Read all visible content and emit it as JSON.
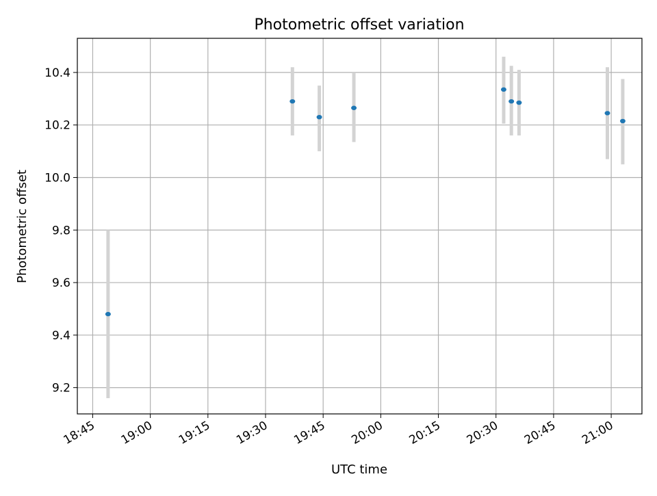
{
  "chart_data": {
    "type": "scatter",
    "title": "Photometric offset variation",
    "xlabel": "UTC time",
    "ylabel": "Photometric offset",
    "x_is_time": true,
    "xlim": [
      "18:41",
      "21:08"
    ],
    "ylim": [
      9.1,
      10.53
    ],
    "x_ticks": [
      "18:45",
      "19:00",
      "19:15",
      "19:30",
      "19:45",
      "20:00",
      "20:15",
      "20:30",
      "20:45",
      "21:00"
    ],
    "y_ticks": [
      "9.2",
      "9.4",
      "9.6",
      "9.8",
      "10.0",
      "10.2",
      "10.4"
    ],
    "grid": true,
    "colors": {
      "point": "#1f77b4",
      "errorbar": "#d3d3d3",
      "grid": "#b0b0b0"
    },
    "points": [
      {
        "time": "18:49",
        "y": 9.48,
        "y_low": 9.16,
        "y_high": 9.8
      },
      {
        "time": "19:37",
        "y": 10.29,
        "y_low": 10.16,
        "y_high": 10.42
      },
      {
        "time": "19:44",
        "y": 10.23,
        "y_low": 10.1,
        "y_high": 10.35
      },
      {
        "time": "19:53",
        "y": 10.265,
        "y_low": 10.135,
        "y_high": 10.4
      },
      {
        "time": "20:32",
        "y": 10.335,
        "y_low": 10.205,
        "y_high": 10.46
      },
      {
        "time": "20:34",
        "y": 10.29,
        "y_low": 10.16,
        "y_high": 10.425
      },
      {
        "time": "20:36",
        "y": 10.285,
        "y_low": 10.16,
        "y_high": 10.41
      },
      {
        "time": "20:59",
        "y": 10.245,
        "y_low": 10.07,
        "y_high": 10.42
      },
      {
        "time": "21:03",
        "y": 10.215,
        "y_low": 10.05,
        "y_high": 10.375
      }
    ]
  }
}
